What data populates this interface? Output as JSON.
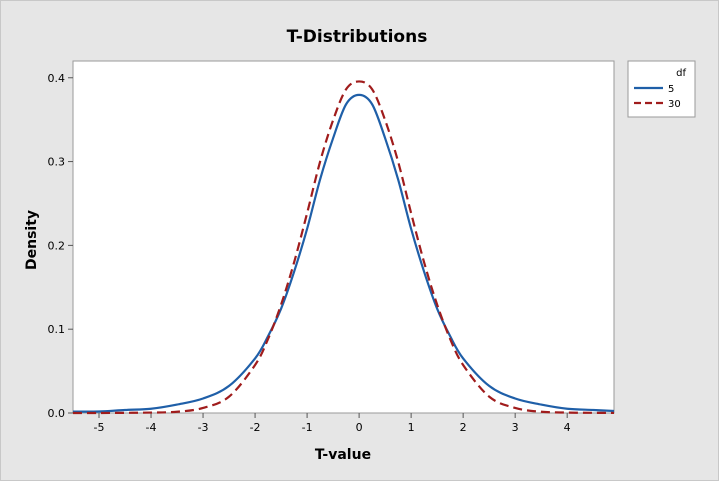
{
  "chart_data": {
    "type": "line",
    "title": "T-Distributions",
    "xlabel": "T-value",
    "ylabel": "Density",
    "xlim": [
      -5.5,
      4.9
    ],
    "ylim": [
      0,
      0.42
    ],
    "xticks": [
      -5,
      -4,
      -3,
      -2,
      -1,
      0,
      1,
      2,
      3,
      4
    ],
    "xtick_labels": [
      "-5",
      "-4",
      "-3",
      "-2",
      "-1",
      "0",
      "1",
      "2",
      "3",
      "4"
    ],
    "yticks": [
      0.0,
      0.1,
      0.2,
      0.3,
      0.4
    ],
    "ytick_labels": [
      "0.0",
      "0.1",
      "0.2",
      "0.3",
      "0.4"
    ],
    "grid": false,
    "legend": {
      "title": "df",
      "position": "right",
      "entries": [
        "5",
        "30"
      ]
    },
    "series": [
      {
        "name": "5",
        "style": "solid",
        "color": "#1f5fa8",
        "x": [
          -5.5,
          -5.0,
          -4.5,
          -4.0,
          -3.5,
          -3.0,
          -2.5,
          -2.0,
          -1.75,
          -1.5,
          -1.25,
          -1.0,
          -0.75,
          -0.5,
          -0.25,
          0.0,
          0.25,
          0.5,
          0.75,
          1.0,
          1.25,
          1.5,
          1.75,
          2.0,
          2.5,
          3.0,
          3.5,
          4.0,
          4.5,
          4.9
        ],
        "values": [
          0.0017,
          0.0018,
          0.0036,
          0.0051,
          0.0101,
          0.0173,
          0.0323,
          0.0651,
          0.0917,
          0.1245,
          0.1685,
          0.2197,
          0.2787,
          0.3279,
          0.3684,
          0.3796,
          0.3684,
          0.3279,
          0.2787,
          0.2197,
          0.1685,
          0.1245,
          0.0917,
          0.0651,
          0.0323,
          0.0173,
          0.0101,
          0.0051,
          0.0036,
          0.0024
        ]
      },
      {
        "name": "30",
        "style": "dashed",
        "color": "#a01c1c",
        "x": [
          -5.5,
          -5.0,
          -4.5,
          -4.0,
          -3.5,
          -3.0,
          -2.5,
          -2.0,
          -1.75,
          -1.5,
          -1.25,
          -1.0,
          -0.75,
          -0.5,
          -0.25,
          0.0,
          0.25,
          0.5,
          0.75,
          1.0,
          1.25,
          1.5,
          1.75,
          2.0,
          2.5,
          3.0,
          3.5,
          4.0,
          4.5,
          4.9
        ],
        "values": [
          0.0,
          0.0,
          0.0002,
          0.0005,
          0.0015,
          0.006,
          0.0195,
          0.0573,
          0.0884,
          0.1293,
          0.1797,
          0.2384,
          0.2999,
          0.3494,
          0.3863,
          0.3956,
          0.3863,
          0.3494,
          0.2999,
          0.2384,
          0.1797,
          0.1293,
          0.0884,
          0.0573,
          0.0195,
          0.006,
          0.0015,
          0.0005,
          0.0002,
          0.0001
        ]
      }
    ]
  }
}
